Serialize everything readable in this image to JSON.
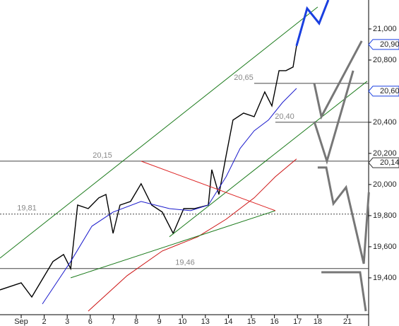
{
  "chart_data": {
    "type": "line",
    "xlim": [
      -0.92,
      15.03
    ],
    "ylim": [
      19186,
      21186
    ],
    "yticks": [
      {
        "value": 19400,
        "label": "19,400"
      },
      {
        "value": 19600,
        "label": "19,600"
      },
      {
        "value": 19800,
        "label": "19,800"
      },
      {
        "value": 20000,
        "label": "20,000"
      },
      {
        "value": 20200,
        "label": "20,200"
      },
      {
        "value": 20400,
        "label": "20,400"
      },
      {
        "value": 20600,
        "label": "20,600"
      },
      {
        "value": 20800,
        "label": "20,800"
      },
      {
        "value": 21000,
        "label": "21,000"
      }
    ],
    "xticks": [
      {
        "value": 0,
        "label": "Sep"
      },
      {
        "value": 1,
        "label": "2"
      },
      {
        "value": 2,
        "label": "3"
      },
      {
        "value": 3,
        "label": "6"
      },
      {
        "value": 4,
        "label": "7"
      },
      {
        "value": 5,
        "label": "8"
      },
      {
        "value": 6,
        "label": "9"
      },
      {
        "value": 7,
        "label": "10"
      },
      {
        "value": 8,
        "label": "13"
      },
      {
        "value": 9,
        "label": "14"
      },
      {
        "value": 10,
        "label": "15"
      },
      {
        "value": 11,
        "label": "16"
      },
      {
        "value": 12,
        "label": "17"
      },
      {
        "value": 12.88,
        "label": "18"
      },
      {
        "value": 14.17,
        "label": "21"
      }
    ],
    "series": [
      {
        "color": "#000000",
        "width": 1.4,
        "x": [
          -0.92,
          0,
          0.46,
          0.92,
          1.38,
          1.84,
          2.15,
          2.45,
          2.91,
          3.37,
          3.68,
          3.99,
          4.29,
          4.75,
          5.21,
          5.67,
          6.13,
          6.6,
          7.06,
          7.52,
          8.13,
          8.28,
          8.59,
          8.9,
          9.2,
          9.66,
          10.12,
          10.58,
          10.89,
          11.2,
          11.5,
          11.81,
          11.96
        ],
        "values": [
          19323,
          19368,
          19277,
          19391,
          19505,
          19550,
          19459,
          19868,
          19845,
          19914,
          19936,
          19686,
          19868,
          19891,
          20005,
          19868,
          19823,
          19686,
          19845,
          19845,
          19868,
          20095,
          19936,
          20186,
          20414,
          20459,
          20436,
          20595,
          20505,
          20732,
          20732,
          20755,
          20891
        ]
      },
      {
        "color": "#1a1acc",
        "width": 1,
        "x": [
          0.92,
          2.15,
          3.07,
          3.99,
          5.21,
          6.44,
          7.36,
          8.13,
          8.9,
          9.51,
          10.12,
          10.74,
          11.35,
          11.96
        ],
        "values": [
          19232,
          19505,
          19732,
          19823,
          19891,
          19845,
          19832,
          19868,
          20050,
          20232,
          20345,
          20414,
          20527,
          20618
        ]
      },
      {
        "color": "#cc1111",
        "width": 1,
        "x": [
          2.91,
          4.6,
          6.13,
          7.67,
          8.9,
          10.12,
          11.04,
          11.96
        ],
        "values": [
          19186,
          19414,
          19573,
          19664,
          19777,
          19914,
          20050,
          20164
        ]
      },
      {
        "color": "#1a7a1a",
        "width": 1,
        "x": [
          -0.92,
          12.88
        ],
        "values": [
          19527,
          21141
        ]
      },
      {
        "color": "#1a7a1a",
        "width": 1,
        "x": [
          6.44,
          15.03
        ],
        "values": [
          19664,
          20664
        ]
      },
      {
        "color": "#1a7a1a",
        "width": 1,
        "x": [
          2.15,
          11.04
        ],
        "values": [
          19400,
          19832
        ]
      },
      {
        "color": "#dd2222",
        "width": 1,
        "x": [
          5.21,
          11.04
        ],
        "values": [
          20150,
          19832
        ]
      },
      {
        "color": "#1a3fe0",
        "width": 3,
        "x": [
          11.96,
          12.42,
          12.94,
          13.34
        ],
        "values": [
          20891,
          21132,
          21036,
          21186
        ]
      },
      {
        "color": "#777777",
        "width": 3,
        "x": [
          12.73,
          13.04,
          14.79
        ],
        "values": [
          20650,
          20436,
          20923
        ]
      },
      {
        "color": "#777777",
        "width": 3,
        "x": [
          12.73,
          13.28,
          14.42
        ],
        "values": [
          20405,
          20150,
          20732
        ]
      },
      {
        "color": "#777777",
        "width": 3,
        "x": [
          12.88,
          13.25,
          13.56,
          14.11,
          14.88,
          15.1
        ],
        "values": [
          20109,
          20109,
          19877,
          19982,
          19491,
          19950
        ]
      },
      {
        "color": "#777777",
        "width": 3,
        "x": [
          13.04,
          14.72,
          14.97
        ],
        "values": [
          19436,
          19436,
          19186
        ]
      }
    ],
    "levels": [
      {
        "value": 20650,
        "label": "20,65",
        "from": 10.12
      },
      {
        "value": 20400,
        "label": "20,40",
        "from": 11.04
      },
      {
        "value": 20150,
        "label": "20,15",
        "from": -0.92
      },
      {
        "value": 19810,
        "label": "19,81",
        "from": -0.92,
        "dash": true
      },
      {
        "value": 19460,
        "label": "19,46",
        "from": -0.92
      }
    ],
    "price_flags": [
      {
        "value": 20900,
        "label": "20,90",
        "color": "#1a3fe0"
      },
      {
        "value": 20600,
        "label": "20,60",
        "color": "#1a3fe0"
      },
      {
        "value": 20140,
        "label": "20,14",
        "color": "#333333"
      }
    ]
  }
}
